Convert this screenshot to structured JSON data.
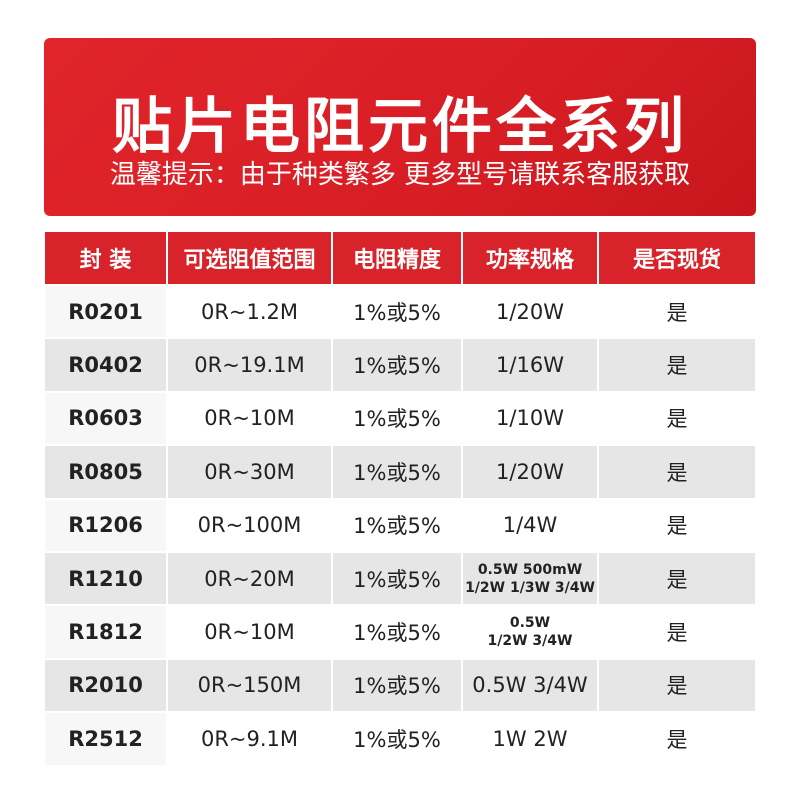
{
  "header": {
    "title": "贴片电阻元件全系列",
    "subtitle": "温馨提示：由于种类繁多 更多型号请联系客服获取"
  },
  "table": {
    "columns": [
      "封 装",
      "可选阻值范围",
      "电阻精度",
      "功率规格",
      "是否现货"
    ],
    "rows": [
      [
        "R0201",
        "0R~1.2M",
        "1%或5%",
        "1/20W",
        "是"
      ],
      [
        "R0402",
        "0R~19.1M",
        "1%或5%",
        "1/16W",
        "是"
      ],
      [
        "R0603",
        "0R~10M",
        "1%或5%",
        "1/10W",
        "是"
      ],
      [
        "R0805",
        "0R~30M",
        "1%或5%",
        "1/20W",
        "是"
      ],
      [
        "R1206",
        "0R~100M",
        "1%或5%",
        "1/4W",
        "是"
      ],
      [
        "R1210",
        "0R~20M",
        "1%或5%",
        [
          "0.5W 500mW",
          "1/2W 1/3W 3/4W"
        ],
        "是"
      ],
      [
        "R1812",
        "0R~10M",
        "1%或5%",
        [
          "0.5W",
          "1/2W 3/4W"
        ],
        "是"
      ],
      [
        "R2010",
        "0R~150M",
        "1%或5%",
        "0.5W  3/4W",
        "是"
      ],
      [
        "R2512",
        "0R~9.1M",
        "1%或5%",
        "1W 2W",
        "是"
      ]
    ]
  }
}
